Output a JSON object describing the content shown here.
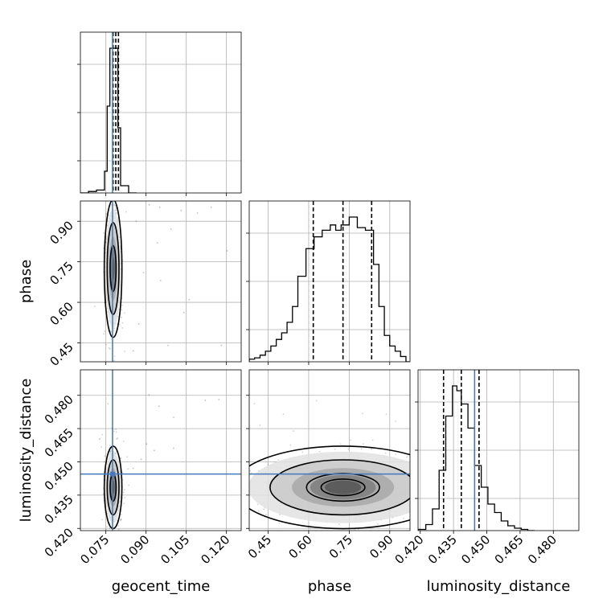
{
  "chart_data": {
    "type": "corner",
    "parameters": [
      "geocent_time",
      "phase",
      "luminosity_distance"
    ],
    "axis_labels": {
      "x": [
        "geocent_time",
        "phase",
        "luminosity_distance"
      ],
      "y": [
        "phase",
        "luminosity_distance"
      ]
    },
    "ranges": {
      "geocent_time": [
        0.0655,
        0.1255
      ],
      "phase": [
        0.38,
        0.975
      ],
      "luminosity_distance": [
        0.419,
        0.4915
      ]
    },
    "ticks": {
      "geocent_time": [
        0.075,
        0.09,
        0.105,
        0.12
      ],
      "phase": [
        0.45,
        0.6,
        0.75,
        0.9
      ],
      "luminosity_distance": [
        0.42,
        0.435,
        0.45,
        0.465,
        0.48
      ]
    },
    "tick_labels": {
      "geocent_time": [
        "0.075",
        "0.090",
        "0.105",
        "0.120"
      ],
      "phase": [
        "0.45",
        "0.60",
        "0.75",
        "0.90"
      ],
      "luminosity_distance": [
        "0.420",
        "0.435",
        "0.450",
        "0.465",
        "0.480"
      ]
    },
    "truths": {
      "geocent_time": 0.0775,
      "luminosity_distance": 0.4445
    },
    "quantiles": {
      "geocent_time": [
        0.0777,
        0.0787,
        0.0797
      ],
      "phase": [
        0.617,
        0.727,
        0.833
      ],
      "luminosity_distance": [
        0.4305,
        0.4385,
        0.4465
      ]
    },
    "histograms": {
      "geocent_time": {
        "edges": [
          0.0655,
          0.0685,
          0.0715,
          0.0745,
          0.0755,
          0.0765,
          0.0775,
          0.0795,
          0.0805,
          0.0835,
          0.0865
        ],
        "counts": [
          0,
          1,
          2,
          15,
          60,
          100,
          100,
          45,
          5,
          0
        ]
      },
      "phase": {
        "edges": [
          0.38,
          0.4,
          0.42,
          0.44,
          0.46,
          0.48,
          0.5,
          0.52,
          0.54,
          0.56,
          0.59,
          0.62,
          0.65,
          0.68,
          0.7,
          0.72,
          0.75,
          0.78,
          0.81,
          0.84,
          0.86,
          0.88,
          0.9,
          0.92,
          0.94,
          0.96,
          0.975
        ],
        "counts": [
          2,
          3,
          5,
          8,
          12,
          17,
          22,
          30,
          42,
          65,
          86,
          95,
          100,
          104,
          100,
          104,
          110,
          102,
          100,
          74,
          42,
          20,
          12,
          8,
          4,
          0
        ]
      },
      "luminosity_distance": {
        "edges": [
          0.419,
          0.4225,
          0.4255,
          0.4285,
          0.4315,
          0.4345,
          0.4365,
          0.4385,
          0.4415,
          0.4445,
          0.4475,
          0.4505,
          0.4535,
          0.4565,
          0.4595,
          0.4625,
          0.4655,
          0.4685,
          0.4715
        ],
        "counts": [
          1,
          5,
          18,
          50,
          95,
          120,
          116,
          105,
          85,
          54,
          36,
          22,
          15,
          8,
          4,
          2,
          1,
          0
        ]
      }
    },
    "densities_2d": [
      {
        "x": "geocent_time",
        "y": "phase",
        "center": [
          0.0777,
          0.725
        ],
        "spread": [
          0.0011,
          0.085
        ],
        "contour_levels_sigma": [
          1,
          2,
          3
        ],
        "outliers": [
          [
            0.0912,
            0.9611
          ],
          [
            0.0951,
            0.9512
          ],
          [
            0.1031,
            0.9401
          ],
          [
            0.1092,
            0.9302
          ],
          [
            0.1143,
            0.9511
          ],
          [
            0.0942,
            0.8201
          ],
          [
            0.0891,
            0.7103
          ],
          [
            0.0954,
            0.6805
          ],
          [
            0.1041,
            0.5621
          ],
          [
            0.0982,
            0.4402
          ],
          [
            0.1061,
            0.6102
          ],
          [
            0.1203,
            0.7906
          ],
          [
            0.0863,
            0.9003
          ],
          [
            0.0993,
            0.8708
          ],
          [
            0.0852,
            0.4205
          ],
          [
            0.1181,
            0.4408
          ],
          [
            0.0873,
            0.5202
          ]
        ]
      },
      {
        "x": "geocent_time",
        "y": "luminosity_distance",
        "center": [
          0.0777,
          0.4385
        ],
        "spread": [
          0.0011,
          0.0062
        ],
        "contour_levels_sigma": [
          1,
          2,
          3
        ],
        "outliers": [
          [
            0.0911,
            0.4802
          ],
          [
            0.0948,
            0.4751
          ],
          [
            0.1003,
            0.4701
          ],
          [
            0.1121,
            0.4777
          ],
          [
            0.1172,
            0.4781
          ],
          [
            0.0902,
            0.4581
          ],
          [
            0.0931,
            0.4551
          ],
          [
            0.1003,
            0.4562
          ],
          [
            0.0882,
            0.4511
          ],
          [
            0.0852,
            0.4471
          ]
        ]
      },
      {
        "x": "phase",
        "y": "luminosity_distance",
        "center": [
          0.727,
          0.4385
        ],
        "spread": [
          0.135,
          0.0062
        ],
        "contour_levels_sigma": [
          0.6,
          1,
          2,
          3
        ],
        "outliers": []
      }
    ],
    "grid": true,
    "truth_color": "#4477bb",
    "line_color": "#000000",
    "grid_color": "#b0b0b0"
  }
}
